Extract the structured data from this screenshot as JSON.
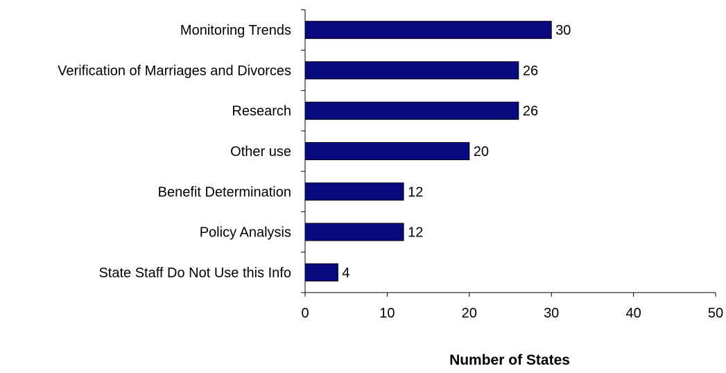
{
  "chart_data": {
    "type": "bar",
    "orientation": "horizontal",
    "categories": [
      "Monitoring Trends",
      "Verification of Marriages and Divorces",
      "Research",
      "Other use",
      "Benefit Determination",
      "Policy Analysis",
      "State Staff Do Not Use this Info"
    ],
    "values": [
      30,
      26,
      26,
      20,
      12,
      12,
      4
    ],
    "data_labels": [
      "30",
      "26",
      "26",
      "20",
      "12",
      "12",
      "4"
    ],
    "xlabel": "Number of States",
    "ylabel": "",
    "xlim": [
      0,
      50
    ],
    "x_ticks": [
      "0",
      "10",
      "20",
      "30",
      "40",
      "50"
    ],
    "grid": false,
    "legend": "none",
    "bar_color": "#0A0A80",
    "bar_edge_color": "#000000"
  }
}
